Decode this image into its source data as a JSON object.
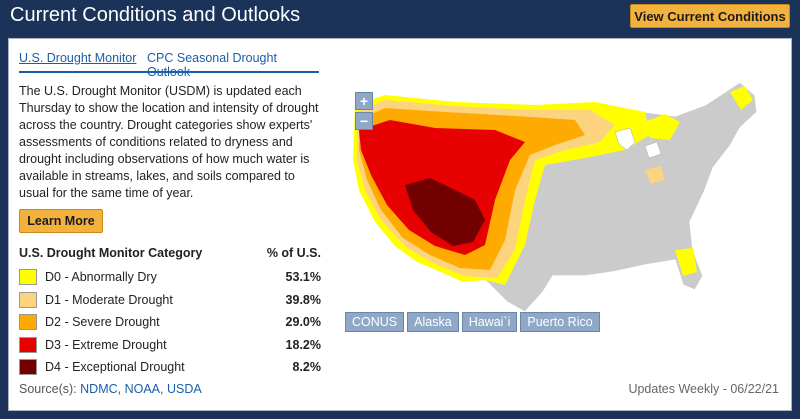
{
  "header": {
    "title": "Current Conditions and Outlooks",
    "view_button": "View Current Conditions"
  },
  "tabs": [
    {
      "label": "U.S. Drought Monitor",
      "active": true
    },
    {
      "label": "CPC Seasonal Drought Outlook",
      "active": false
    }
  ],
  "description": "The U.S. Drought Monitor (USDM) is updated each Thursday to show the location and intensity of drought across the country. Drought categories show experts' assessments of conditions related to dryness and drought including observations of how much water is available in streams, lakes, and soils compared to usual for the same time of year.",
  "learn_more": "Learn More",
  "legend": {
    "category_header": "U.S. Drought Monitor Category",
    "pct_header": "% of U.S.",
    "items": [
      {
        "label": "D0 - Abnormally Dry",
        "value": "53.1%",
        "color": "#ffff00"
      },
      {
        "label": "D1 - Moderate Drought",
        "value": "39.8%",
        "color": "#fcd37f"
      },
      {
        "label": "D2 - Severe Drought",
        "value": "29.0%",
        "color": "#ffaa00"
      },
      {
        "label": "D3 - Extreme Drought",
        "value": "18.2%",
        "color": "#e60000"
      },
      {
        "label": "D4 - Exceptional Drought",
        "value": "8.2%",
        "color": "#730000"
      }
    ]
  },
  "sources": {
    "prefix": "Source(s): ",
    "links": [
      "NDMC",
      "NOAA",
      "USDA"
    ]
  },
  "map": {
    "zoom_in": "+",
    "zoom_out": "−",
    "regions": [
      "CONUS",
      "Alaska",
      "Hawai`i",
      "Puerto Rico"
    ]
  },
  "updates": "Updates Weekly - 06/22/21"
}
